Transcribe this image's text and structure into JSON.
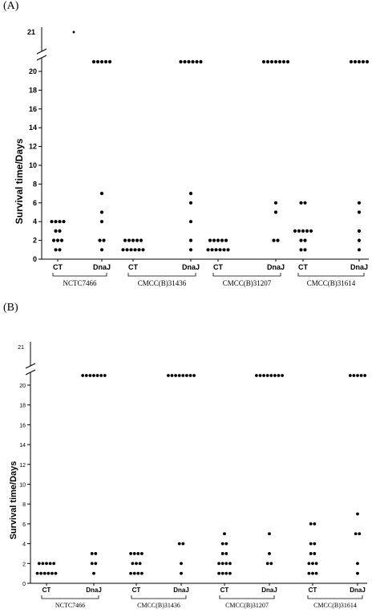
{
  "panels": [
    {
      "label": "(A)"
    },
    {
      "label": "(B)"
    }
  ],
  "chart_data": [
    {
      "type": "scatter",
      "panel": "(A)",
      "ylabel": "Survival  time/Days",
      "yticks": [
        "0",
        "2",
        "4",
        "6",
        "8",
        "10",
        "12",
        "14",
        "16",
        "18",
        "20"
      ],
      "ybreak_tick": "21",
      "ylim": [
        0,
        21
      ],
      "axis_break": true,
      "groups": [
        {
          "strain": "NCTC7466",
          "categories": [
            "CT",
            "DnaJ"
          ],
          "CT": [
            1,
            1,
            2,
            2,
            2,
            3,
            3,
            4,
            4,
            4,
            4
          ],
          "DnaJ": [
            1,
            2,
            2,
            4,
            5,
            7,
            21,
            21,
            21,
            21,
            21
          ],
          "outliers": [
            {
              "group": "CT",
              "value": 21
            }
          ]
        },
        {
          "strain": "CMCC(B)31436",
          "categories": [
            "CT",
            "DnaJ"
          ],
          "CT": [
            1,
            1,
            1,
            1,
            1,
            1,
            2,
            2,
            2,
            2,
            2
          ],
          "DnaJ": [
            1,
            2,
            4,
            6,
            7,
            21,
            21,
            21,
            21,
            21,
            21
          ],
          "outliers": []
        },
        {
          "strain": "CMCC(B)31207",
          "categories": [
            "CT",
            "DnaJ"
          ],
          "CT": [
            1,
            1,
            1,
            1,
            1,
            1,
            2,
            2,
            2,
            2,
            2
          ],
          "DnaJ": [
            2,
            2,
            5,
            6,
            21,
            21,
            21,
            21,
            21,
            21,
            21
          ],
          "outliers": []
        },
        {
          "strain": "CMCC(B)31614",
          "categories": [
            "CT",
            "DnaJ"
          ],
          "CT": [
            1,
            1,
            2,
            2,
            3,
            3,
            3,
            3,
            3,
            6,
            6
          ],
          "DnaJ": [
            1,
            2,
            3,
            5,
            6,
            21,
            21,
            21,
            21,
            21
          ],
          "outliers": []
        }
      ]
    },
    {
      "type": "scatter",
      "panel": "(B)",
      "ylabel": "Survival time/Days",
      "yticks": [
        "0",
        "2",
        "4",
        "6",
        "8",
        "10",
        "12",
        "14",
        "16",
        "18",
        "20"
      ],
      "ybreak_tick": "21",
      "ylim": [
        0,
        21
      ],
      "axis_break": true,
      "groups": [
        {
          "strain": "NCTC7466",
          "categories": [
            "CT",
            "DnaJ"
          ],
          "CT": [
            1,
            1,
            1,
            1,
            1,
            1,
            2,
            2,
            2,
            2,
            2
          ],
          "DnaJ": [
            1,
            2,
            2,
            3,
            3,
            21,
            21,
            21,
            21,
            21,
            21,
            21
          ],
          "outliers": []
        },
        {
          "strain": "CMCC(B)31436",
          "categories": [
            "CT",
            "DnaJ"
          ],
          "CT": [
            1,
            1,
            1,
            1,
            2,
            2,
            2,
            3,
            3,
            3,
            3
          ],
          "DnaJ": [
            1,
            2,
            4,
            4,
            21,
            21,
            21,
            21,
            21,
            21,
            21,
            21
          ],
          "outliers": []
        },
        {
          "strain": "CMCC(B)31207",
          "categories": [
            "CT",
            "DnaJ"
          ],
          "CT": [
            1,
            1,
            1,
            1,
            2,
            2,
            2,
            2,
            3,
            3,
            4,
            4,
            5
          ],
          "DnaJ": [
            2,
            2,
            3,
            5,
            21,
            21,
            21,
            21,
            21,
            21,
            21,
            21
          ],
          "outliers": []
        },
        {
          "strain": "CMCC(B)31614",
          "categories": [
            "CT",
            "DnaJ"
          ],
          "CT": [
            1,
            1,
            1,
            2,
            2,
            2,
            3,
            3,
            4,
            4,
            6,
            6
          ],
          "DnaJ": [
            1,
            2,
            5,
            5,
            7,
            21,
            21,
            21,
            21,
            21
          ],
          "outliers": []
        }
      ]
    }
  ]
}
